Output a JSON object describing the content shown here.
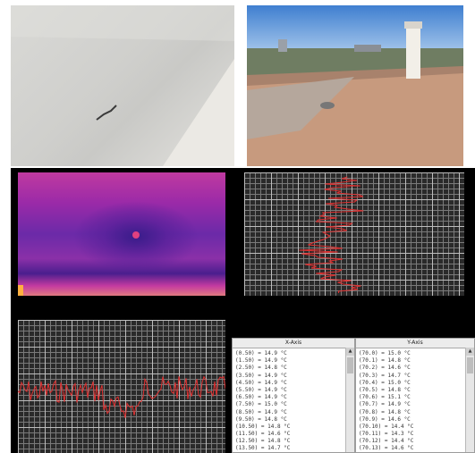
{
  "photos": {
    "wall_photo": {
      "icon": "wall-crack-photo"
    },
    "roof_photo": {
      "icon": "rooftop-photo"
    }
  },
  "thermal": {
    "icon": "thermal-image",
    "colors": [
      "#2a1a7a",
      "#5a2aa0",
      "#b030a0",
      "#e05aa0",
      "#ff9a3a"
    ]
  },
  "profile_panels": {
    "x_profile": {
      "line_color": "#e03030"
    },
    "y_profile": {
      "line_color": "#e03030"
    }
  },
  "x_table": {
    "header": "X-Axis",
    "rows": [
      "(0.50) = 14.9 °C",
      "(1.50) = 14.9 °C",
      "(2.50) = 14.8 °C",
      "(3.50) = 14.9 °C",
      "(4.50) = 14.9 °C",
      "(5.50) = 14.9 °C",
      "(6.50) = 14.9 °C",
      "(7.50) = 15.0 °C",
      "(8.50) = 14.9 °C",
      "(9.50) = 14.8 °C",
      "(10.50) = 14.8 °C",
      "(11.50) = 14.6 °C",
      "(12.50) = 14.8 °C",
      "(13.50) = 14.7 °C"
    ]
  },
  "y_table": {
    "header": "Y-Axis",
    "rows": [
      "(70.0) = 15.0 °C",
      "(70.1) = 14.8 °C",
      "(70.2) = 14.6 °C",
      "(70.3) = 14.7 °C",
      "(70.4) = 15.0 °C",
      "(70.5) = 14.8 °C",
      "(70.6) = 15.1 °C",
      "(70.7) = 14.9 °C",
      "(70.8) = 14.8 °C",
      "(70.9) = 14.6 °C",
      "(70.10) = 14.4 °C",
      "(70.11) = 14.3 °C",
      "(70.12) = 14.4 °C",
      "(70.13) = 14.6 °C"
    ]
  },
  "scroll": {
    "up": "▲",
    "down": "▼"
  }
}
